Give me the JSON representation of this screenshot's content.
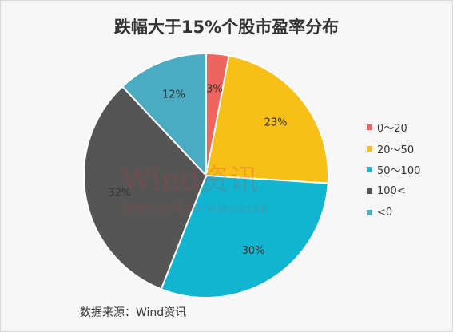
{
  "chart_data": {
    "type": "pie",
    "title": "跌幅大于15%个股市盈率分布",
    "slices": [
      {
        "label": "0～20",
        "value": 3,
        "display": "3%",
        "color": "#f0645f"
      },
      {
        "label": "20～50",
        "value": 23,
        "display": "23%",
        "color": "#f8bf17"
      },
      {
        "label": "50～100",
        "value": 30,
        "display": "30%",
        "color": "#10b6d1"
      },
      {
        "label": "100<",
        "value": 32,
        "display": "32%",
        "color": "#555555"
      },
      {
        "label": "<0",
        "value": 12,
        "display": "12%",
        "color": "#4babc3"
      }
    ],
    "legend_position": "right"
  },
  "watermark": {
    "line1": "Wind资讯",
    "line2": "微信公众号ID:windzxsh"
  },
  "source": "数据来源：Wind资讯"
}
